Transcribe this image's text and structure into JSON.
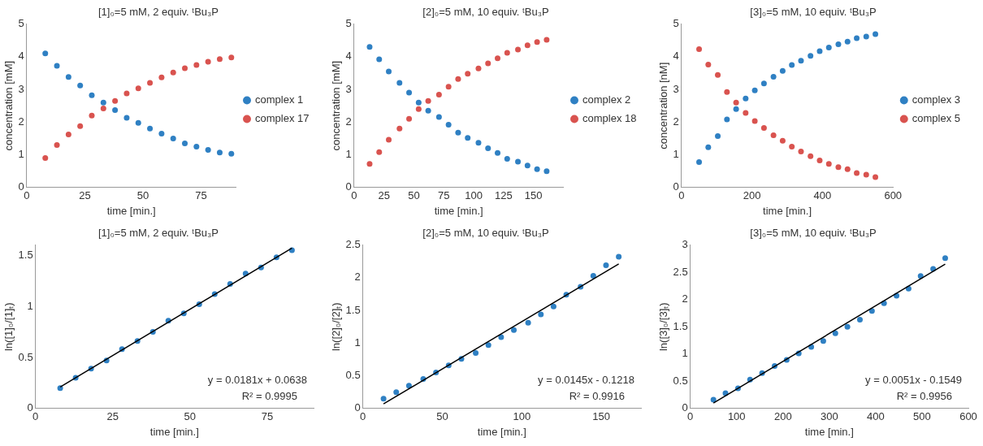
{
  "chart_data": [
    {
      "type": "scatter",
      "title": "[1]₀=5 mM, 2 equiv. ᵗBu₃P",
      "xlabel": "time [min.]",
      "ylabel": "concentration [mM]",
      "x": [
        8,
        13,
        18,
        23,
        28,
        33,
        38,
        43,
        48,
        53,
        58,
        63,
        68,
        73,
        78,
        83,
        88
      ],
      "xlim": [
        0,
        90
      ],
      "xticks": [
        0,
        25,
        50,
        75
      ],
      "ylim": [
        0,
        5
      ],
      "yticks": [
        0,
        1,
        2,
        3,
        4,
        5
      ],
      "grid": false,
      "legend": "right",
      "marker": "circle",
      "series": [
        {
          "name": "complex 1",
          "color": "#2f80c3",
          "values": [
            4.1,
            3.72,
            3.38,
            3.12,
            2.82,
            2.6,
            2.37,
            2.13,
            1.98,
            1.8,
            1.65,
            1.5,
            1.35,
            1.25,
            1.15,
            1.07,
            1.03
          ]
        },
        {
          "name": "complex 17",
          "color": "#d9534f",
          "values": [
            0.9,
            1.3,
            1.62,
            1.88,
            2.2,
            2.42,
            2.65,
            2.88,
            3.03,
            3.2,
            3.37,
            3.52,
            3.65,
            3.75,
            3.85,
            3.93,
            3.98
          ]
        }
      ]
    },
    {
      "type": "scatter",
      "title": "[2]₀=5 mM, 10 equiv. ᵗBu₃P",
      "xlabel": "time [min.]",
      "ylabel": "concentration [mM]",
      "x": [
        13,
        21,
        29,
        38,
        46,
        54,
        62,
        71,
        79,
        87,
        95,
        104,
        112,
        120,
        128,
        137,
        145,
        153,
        161
      ],
      "xlim": [
        0,
        175
      ],
      "xticks": [
        0,
        25,
        50,
        75,
        100,
        125,
        150
      ],
      "ylim": [
        0,
        5
      ],
      "yticks": [
        0,
        1,
        2,
        3,
        4,
        5
      ],
      "grid": false,
      "legend": "right",
      "marker": "circle",
      "series": [
        {
          "name": "complex 2",
          "color": "#2f80c3",
          "values": [
            4.3,
            3.92,
            3.55,
            3.2,
            2.9,
            2.6,
            2.35,
            2.16,
            1.92,
            1.68,
            1.52,
            1.37,
            1.2,
            1.06,
            0.88,
            0.79,
            0.67,
            0.56,
            0.5
          ]
        },
        {
          "name": "complex 18",
          "color": "#d9534f",
          "values": [
            0.72,
            1.08,
            1.46,
            1.8,
            2.1,
            2.4,
            2.65,
            2.84,
            3.08,
            3.32,
            3.48,
            3.64,
            3.8,
            3.95,
            4.12,
            4.22,
            4.35,
            4.45,
            4.52
          ]
        }
      ]
    },
    {
      "type": "scatter",
      "title": "[3]₀=5 mM, 10 equiv. ᵗBu₃P",
      "xlabel": "time [min.]",
      "ylabel": "concentration [nM]",
      "x": [
        50,
        76,
        103,
        129,
        155,
        182,
        208,
        234,
        261,
        287,
        313,
        339,
        366,
        392,
        418,
        445,
        471,
        497,
        524,
        550
      ],
      "xlim": [
        0,
        600
      ],
      "xticks": [
        0,
        200,
        400,
        600
      ],
      "ylim": [
        0,
        5
      ],
      "yticks": [
        0,
        1,
        2,
        3,
        4,
        5
      ],
      "grid": false,
      "legend": "right",
      "marker": "circle",
      "series": [
        {
          "name": "complex 3",
          "color": "#2f80c3",
          "values": [
            0.78,
            1.23,
            1.57,
            2.08,
            2.4,
            2.72,
            2.97,
            3.18,
            3.39,
            3.57,
            3.75,
            3.88,
            4.03,
            4.17,
            4.28,
            4.38,
            4.46,
            4.57,
            4.62,
            4.69
          ]
        },
        {
          "name": "complex 5",
          "color": "#d9534f",
          "values": [
            4.23,
            3.76,
            3.44,
            2.92,
            2.6,
            2.28,
            2.03,
            1.82,
            1.6,
            1.43,
            1.25,
            1.1,
            0.96,
            0.83,
            0.72,
            0.62,
            0.56,
            0.44,
            0.39,
            0.32
          ]
        }
      ]
    },
    {
      "type": "scatter",
      "title": "[1]₀=5 mM, 2 equiv. ᵗBu₃P",
      "xlabel": "time [min.]",
      "ylabel": "ln([1]₀/[1]ₜ)",
      "x": [
        8,
        13,
        18,
        23,
        28,
        33,
        38,
        43,
        48,
        53,
        58,
        63,
        68,
        73,
        78,
        83
      ],
      "xlim": [
        0,
        90
      ],
      "xticks": [
        0,
        25,
        50,
        75
      ],
      "ylim": [
        0,
        1.6
      ],
      "yticks": [
        0,
        0.5,
        1,
        1.5
      ],
      "grid": false,
      "marker": "circle",
      "annotations": [
        "y = 0.0181x + 0.0638",
        "R² = 0.9995"
      ],
      "series": [
        {
          "color": "#2f80c3",
          "values": [
            0.2,
            0.3,
            0.39,
            0.47,
            0.58,
            0.66,
            0.75,
            0.86,
            0.93,
            1.02,
            1.12,
            1.22,
            1.32,
            1.38,
            1.48,
            1.55
          ]
        },
        {
          "type": "line",
          "color": "#000000",
          "marker": "none",
          "x": [
            8,
            83
          ],
          "values": [
            0.21,
            1.57
          ]
        }
      ]
    },
    {
      "type": "scatter",
      "title": "[2]₀=5 mM, 10 equiv. ᵗBu₃P",
      "xlabel": "time [min.]",
      "ylabel": "ln([2]₀/[2]ₜ)",
      "x": [
        13,
        21,
        29,
        38,
        46,
        54,
        62,
        71,
        79,
        87,
        95,
        104,
        112,
        120,
        128,
        137,
        145,
        153,
        161
      ],
      "xlim": [
        0,
        175
      ],
      "xticks": [
        0,
        50,
        100,
        150
      ],
      "ylim": [
        0,
        2.5
      ],
      "yticks": [
        0,
        0.5,
        1,
        1.5,
        2,
        2.5
      ],
      "grid": false,
      "marker": "circle",
      "annotations": [
        "y = 0.0145x - 0.1218",
        "R² = 0.9916"
      ],
      "series": [
        {
          "color": "#2f80c3",
          "values": [
            0.15,
            0.25,
            0.35,
            0.45,
            0.55,
            0.66,
            0.76,
            0.85,
            0.97,
            1.09,
            1.2,
            1.31,
            1.44,
            1.56,
            1.74,
            1.86,
            2.03,
            2.19,
            2.32
          ]
        },
        {
          "type": "line",
          "color": "#000000",
          "marker": "none",
          "x": [
            13,
            161
          ],
          "values": [
            0.07,
            2.21
          ]
        }
      ]
    },
    {
      "type": "scatter",
      "title": "[3]₀=5 mM, 10 equiv. ᵗBu₃P",
      "xlabel": "time [min.]",
      "ylabel": "ln([3]₀/[3]ₜ)",
      "x": [
        50,
        76,
        103,
        129,
        155,
        182,
        208,
        234,
        261,
        287,
        313,
        339,
        366,
        392,
        418,
        445,
        471,
        497,
        524,
        550
      ],
      "xlim": [
        0,
        600
      ],
      "xticks": [
        0,
        100,
        200,
        300,
        400,
        500,
        600
      ],
      "ylim": [
        0,
        3
      ],
      "yticks": [
        0,
        0.5,
        1,
        1.5,
        2,
        2.5,
        3
      ],
      "grid": false,
      "marker": "circle",
      "annotations": [
        "y = 0.0051x - 0.1549",
        "R² = 0.9956"
      ],
      "series": [
        {
          "color": "#2f80c3",
          "values": [
            0.16,
            0.28,
            0.37,
            0.53,
            0.65,
            0.78,
            0.89,
            1.01,
            1.13,
            1.24,
            1.38,
            1.5,
            1.63,
            1.79,
            1.93,
            2.07,
            2.2,
            2.43,
            2.56,
            2.76
          ]
        },
        {
          "type": "line",
          "color": "#000000",
          "marker": "none",
          "x": [
            50,
            550
          ],
          "values": [
            0.1,
            2.65
          ]
        }
      ]
    }
  ]
}
